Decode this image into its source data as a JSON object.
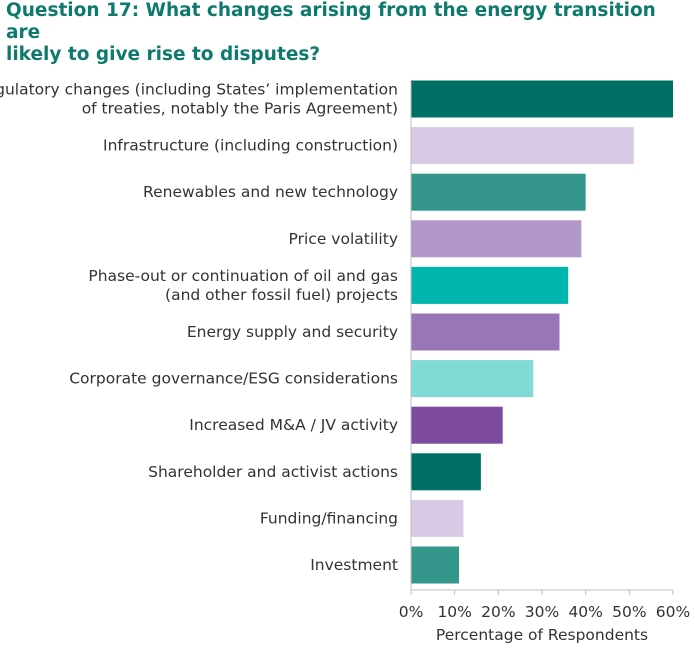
{
  "chart_data": {
    "type": "bar",
    "orientation": "horizontal",
    "title_lines": [
      "Question 17: What changes arising from the energy transition are",
      "likely to give rise to disputes?"
    ],
    "xlabel": "Percentage of Respondents",
    "ylabel": "",
    "xlim": [
      0,
      60
    ],
    "xticks": [
      "0%",
      "10%",
      "20%",
      "30%",
      "40%",
      "50%",
      "60%"
    ],
    "grid": false,
    "categories": [
      [
        "Regulatory changes (including States’ implementation",
        "of treaties, notably the Paris Agreement)"
      ],
      [
        "Infrastructure (including construction)"
      ],
      [
        "Renewables and new technology"
      ],
      [
        "Price volatility"
      ],
      [
        "Phase-out or continuation of oil and gas",
        "(and other fossil fuel) projects"
      ],
      [
        "Energy supply and security"
      ],
      [
        "Corporate governance/ESG considerations"
      ],
      [
        "Increased M&A / JV activity"
      ],
      [
        "Shareholder and activist actions"
      ],
      [
        "Funding/financing"
      ],
      [
        "Investment"
      ]
    ],
    "values": [
      60,
      51,
      40,
      39,
      36,
      34,
      28,
      21,
      16,
      12,
      11
    ],
    "colors": [
      "#007066",
      "#d8c9e4",
      "#35968c",
      "#b196c9",
      "#00b5ad",
      "#9a76b8",
      "#80dbd6",
      "#7c4a9e",
      "#007066",
      "#d8c9e4",
      "#35968c"
    ]
  }
}
